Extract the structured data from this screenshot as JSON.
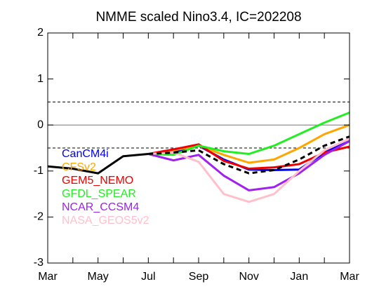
{
  "chart_data": {
    "type": "line",
    "title": "NMME scaled Nino3.4, IC=202208",
    "categories": [
      "Mar",
      null,
      "May",
      null,
      "Jul",
      null,
      "Sep",
      null,
      "Nov",
      null,
      "Jan",
      null,
      "Mar"
    ],
    "ylim": [
      -3,
      2
    ],
    "yticks": [
      -3,
      -2,
      -1,
      0,
      1,
      2
    ],
    "reference_lines": [
      {
        "value": 0.5,
        "style": "dashed",
        "color": "#000000"
      },
      {
        "value": 0,
        "style": "solid",
        "color": "#777777"
      },
      {
        "value": -0.5,
        "style": "dashed",
        "color": "#000000"
      }
    ],
    "series": [
      {
        "name": "CanCM4i",
        "color": "#0000ee",
        "style": "solid",
        "values": [
          null,
          null,
          null,
          null,
          -0.63,
          -0.6,
          -0.45,
          -0.75,
          -0.97,
          -0.98,
          -0.97,
          -0.6,
          -0.3
        ]
      },
      {
        "name": "CFSv2",
        "color": "#ffa500",
        "style": "solid",
        "values": [
          null,
          null,
          null,
          null,
          -0.63,
          -0.55,
          -0.45,
          -0.65,
          -0.82,
          -0.75,
          -0.5,
          -0.2,
          0
        ]
      },
      {
        "name": "GEM5_NEMO",
        "color": "#ee0000",
        "style": "solid",
        "values": [
          null,
          null,
          null,
          null,
          -0.63,
          -0.53,
          -0.42,
          -0.78,
          -0.95,
          -0.92,
          -0.85,
          -0.6,
          -0.47
        ]
      },
      {
        "name": "GFDL_SPEAR",
        "color": "#22ee22",
        "style": "solid",
        "values": [
          null,
          null,
          null,
          null,
          -0.63,
          -0.65,
          -0.45,
          -0.57,
          -0.63,
          -0.45,
          -0.2,
          0.05,
          0.27
        ]
      },
      {
        "name": "NCAR_CCSM4",
        "color": "#a020f0",
        "style": "solid",
        "values": [
          null,
          null,
          null,
          null,
          -0.63,
          -0.77,
          -0.65,
          -1.1,
          -1.42,
          -1.35,
          -1.05,
          -0.65,
          -0.35
        ]
      },
      {
        "name": "NASA_GEOS5v2",
        "color": "#ffc0cb",
        "style": "solid",
        "values": [
          null,
          null,
          null,
          null,
          -0.63,
          -0.6,
          -0.8,
          -1.5,
          -1.67,
          -1.5,
          -1.0,
          -0.55,
          -0.3
        ]
      },
      {
        "color": "#000000",
        "style": "dashed",
        "values": [
          null,
          null,
          null,
          null,
          -0.63,
          -0.6,
          -0.55,
          -0.85,
          -1.05,
          -0.98,
          -0.75,
          -0.45,
          -0.25
        ]
      },
      {
        "color": "#000000",
        "style": "solid",
        "values": [
          -0.9,
          -0.95,
          -1.05,
          -0.68,
          -0.63,
          null,
          null,
          null,
          null,
          null,
          null,
          null,
          null
        ]
      }
    ]
  }
}
